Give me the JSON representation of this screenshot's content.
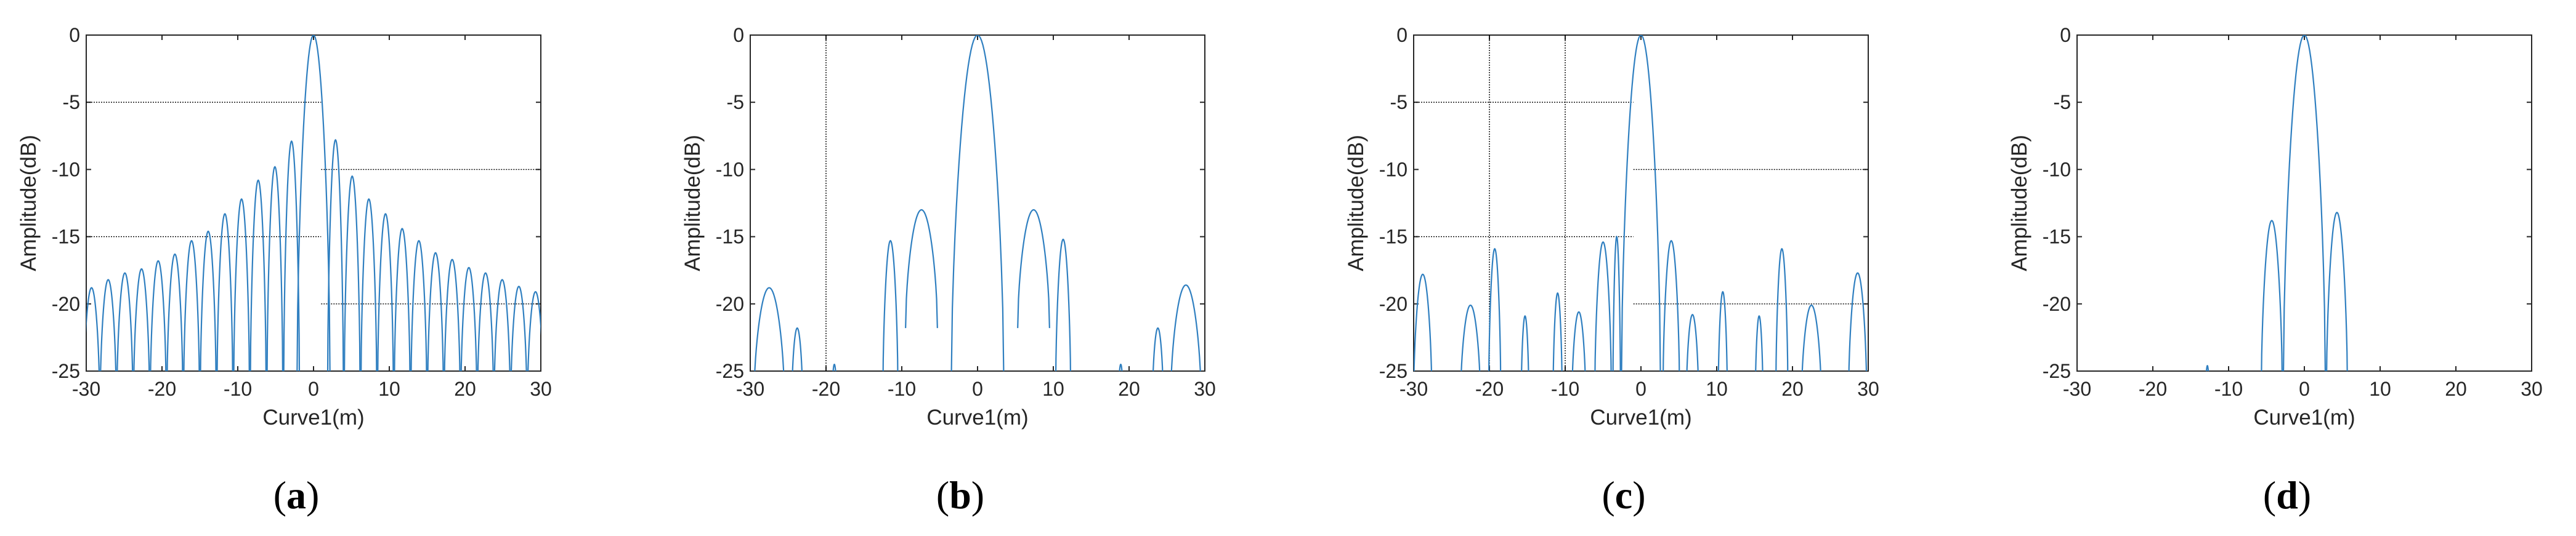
{
  "figure": {
    "colors": {
      "series": "#2f7fc0",
      "axes": "#262626",
      "guide": "#000000"
    },
    "panels": [
      {
        "label_letter": "a"
      },
      {
        "label_letter": "b"
      },
      {
        "label_letter": "c"
      },
      {
        "label_letter": "d"
      }
    ]
  },
  "chart_data": [
    {
      "type": "line",
      "panel": "(a)",
      "xlabel": "Curve1(m)",
      "ylabel": "Amplitude(dB)",
      "xlim": [
        -30,
        30
      ],
      "ylim": [
        -25,
        0
      ],
      "xticks": [
        -30,
        -20,
        -10,
        0,
        10,
        20,
        30
      ],
      "yticks": [
        0,
        -5,
        -10,
        -15,
        -20,
        -25
      ],
      "grid": false,
      "series": [
        {
          "lobes": [
            {
              "x": -29.3,
              "y": -18.8
            },
            {
              "x": -27.1,
              "y": -18.2
            },
            {
              "x": -24.9,
              "y": -17.7
            },
            {
              "x": -22.7,
              "y": -17.4
            },
            {
              "x": -20.5,
              "y": -16.8
            },
            {
              "x": -18.3,
              "y": -16.3
            },
            {
              "x": -16.1,
              "y": -15.3
            },
            {
              "x": -13.9,
              "y": -14.6
            },
            {
              "x": -11.7,
              "y": -13.3
            },
            {
              "x": -9.5,
              "y": -12.2
            },
            {
              "x": -7.3,
              "y": -10.8
            },
            {
              "x": -5.1,
              "y": -9.8
            },
            {
              "x": -2.9,
              "y": -7.9
            },
            {
              "x": 0,
              "y": 0
            },
            {
              "x": 2.9,
              "y": -7.8
            },
            {
              "x": 5.1,
              "y": -10.5
            },
            {
              "x": 7.3,
              "y": -12.2
            },
            {
              "x": 9.5,
              "y": -13.3
            },
            {
              "x": 11.7,
              "y": -14.4
            },
            {
              "x": 13.9,
              "y": -15.3
            },
            {
              "x": 16.1,
              "y": -16.2
            },
            {
              "x": 18.3,
              "y": -16.7
            },
            {
              "x": 20.5,
              "y": -17.3
            },
            {
              "x": 22.7,
              "y": -17.7
            },
            {
              "x": 24.9,
              "y": -18.2
            },
            {
              "x": 27.1,
              "y": -18.7
            },
            {
              "x": 29.3,
              "y": -19.1
            }
          ]
        }
      ],
      "reference_lines": [
        {
          "y": -5,
          "x": [
            -30,
            1
          ]
        },
        {
          "y": -10,
          "x": [
            1,
            30
          ]
        },
        {
          "y": -15,
          "x": [
            -30,
            1
          ]
        },
        {
          "y": -20,
          "x": [
            1,
            30
          ]
        }
      ]
    },
    {
      "type": "line",
      "panel": "(b)",
      "xlabel": "Curve1(m)",
      "ylabel": "Amplitude(dB)",
      "xlim": [
        -30,
        30
      ],
      "ylim": [
        -25,
        0
      ],
      "xticks": [
        -30,
        -20,
        -10,
        0,
        10,
        20,
        30
      ],
      "yticks": [
        0,
        -5,
        -10,
        -15,
        -20,
        -25
      ],
      "grid": false,
      "series": [
        {
          "lobes": [
            {
              "x": -27.5,
              "y": -18.8,
              "w": 4.0
            },
            {
              "x": -23.8,
              "y": -21.8,
              "w": 1.4
            },
            {
              "x": -18.9,
              "y": -24.5,
              "w": 0.6
            },
            {
              "x": -11.5,
              "y": -15.3,
              "w": 2.0
            },
            {
              "x": -7.4,
              "y": -13.0,
              "w": 4.2,
              "floor": -21.8
            },
            {
              "x": 0,
              "y": 0,
              "w": 7.0
            },
            {
              "x": 7.4,
              "y": -13.0,
              "w": 4.2,
              "floor": -21.8
            },
            {
              "x": 11.3,
              "y": -15.2,
              "w": 2.0
            },
            {
              "x": 18.9,
              "y": -24.5,
              "w": 0.6
            },
            {
              "x": 23.8,
              "y": -21.8,
              "w": 1.4
            },
            {
              "x": 27.5,
              "y": -18.6,
              "w": 4.0
            }
          ]
        }
      ],
      "reference_lines": [
        {
          "x": -20,
          "y": [
            -25,
            0
          ]
        }
      ]
    },
    {
      "type": "line",
      "panel": "(c)",
      "xlabel": "Curve1(m)",
      "ylabel": "Amplitude(dB)",
      "xlim": [
        -30,
        30
      ],
      "ylim": [
        -25,
        0
      ],
      "xticks": [
        -30,
        -20,
        -10,
        0,
        10,
        20,
        30
      ],
      "yticks": [
        0,
        -5,
        -10,
        -15,
        -20,
        -25
      ],
      "grid": false,
      "series": [
        {
          "lobes": [
            {
              "x": -28.8,
              "y": -17.8,
              "w": 2.4
            },
            {
              "x": -22.5,
              "y": -20.1,
              "w": 2.6
            },
            {
              "x": -19.3,
              "y": -15.9,
              "w": 1.6
            },
            {
              "x": -15.3,
              "y": -20.9,
              "w": 1.0
            },
            {
              "x": -11.0,
              "y": -19.2,
              "w": 1.2
            },
            {
              "x": -8.2,
              "y": -20.6,
              "w": 1.8
            },
            {
              "x": -5.0,
              "y": -15.4,
              "w": 2.2
            },
            {
              "x": -3.2,
              "y": -15.0,
              "w": 1.0
            },
            {
              "x": 0,
              "y": 0,
              "w": 5.2
            },
            {
              "x": 4.0,
              "y": -15.3,
              "w": 2.2
            },
            {
              "x": 6.8,
              "y": -20.8,
              "w": 1.6
            },
            {
              "x": 10.8,
              "y": -19.1,
              "w": 1.2
            },
            {
              "x": 15.6,
              "y": -20.9,
              "w": 1.0
            },
            {
              "x": 18.6,
              "y": -15.9,
              "w": 1.6
            },
            {
              "x": 22.5,
              "y": -20.1,
              "w": 2.6
            },
            {
              "x": 28.6,
              "y": -17.7,
              "w": 2.4
            }
          ]
        }
      ],
      "reference_lines": [
        {
          "x": -20,
          "y": [
            -25,
            0
          ]
        },
        {
          "x": -10,
          "y": [
            -25,
            0
          ]
        },
        {
          "y": -5,
          "x": [
            -30,
            -1
          ]
        },
        {
          "y": -10,
          "x": [
            -1,
            30
          ]
        },
        {
          "y": -15,
          "x": [
            -30,
            -1
          ]
        },
        {
          "y": -20,
          "x": [
            -1,
            30
          ]
        }
      ]
    },
    {
      "type": "line",
      "panel": "(d)",
      "xlabel": "Curve1(m)",
      "ylabel": "Amplitude(dB)",
      "xlim": [
        -30,
        30
      ],
      "ylim": [
        -25,
        0
      ],
      "xticks": [
        -30,
        -20,
        -10,
        0,
        10,
        20,
        30
      ],
      "yticks": [
        0,
        -5,
        -10,
        -15,
        -20,
        -25
      ],
      "grid": false,
      "series": [
        {
          "lobes": [
            {
              "x": -12.8,
              "y": -24.6,
              "w": 0.5
            },
            {
              "x": -4.3,
              "y": -13.8,
              "w": 2.8
            },
            {
              "x": 0,
              "y": 0,
              "w": 5.6
            },
            {
              "x": 4.3,
              "y": -13.2,
              "w": 2.8
            }
          ]
        }
      ],
      "reference_lines": []
    }
  ]
}
